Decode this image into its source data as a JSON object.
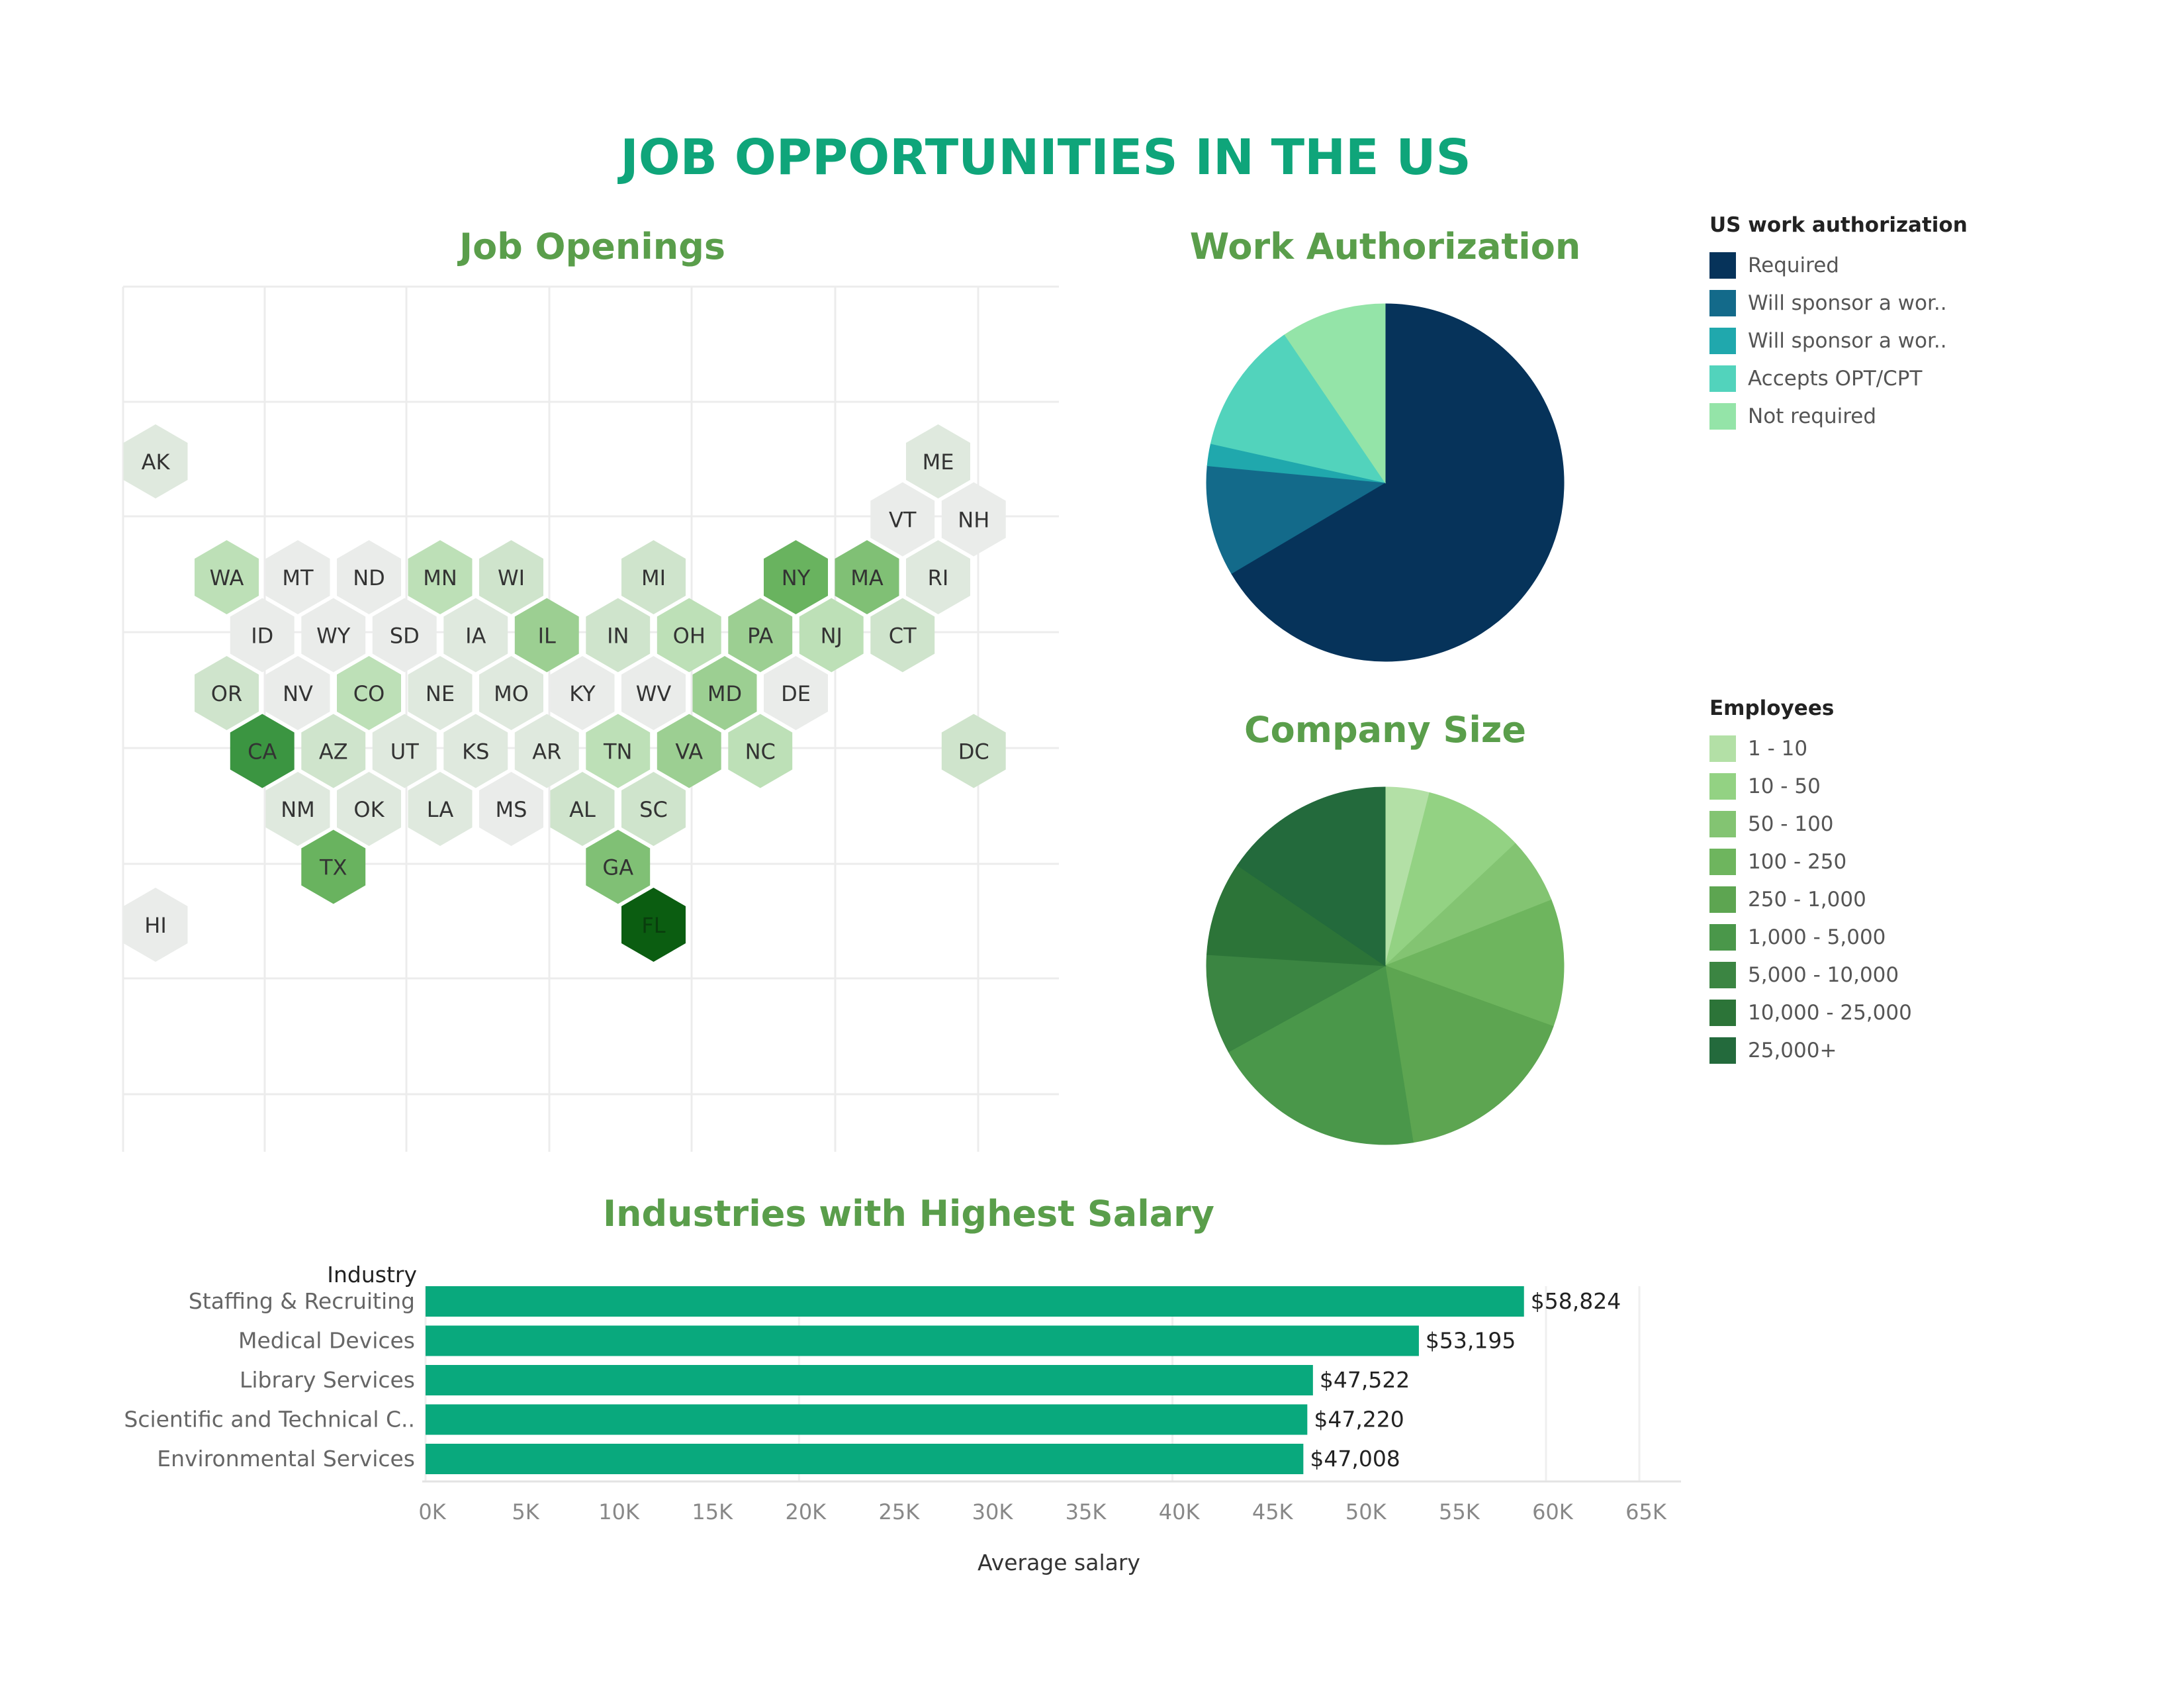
{
  "title": "JOB OPPORTUNITIES IN THE US",
  "colors": {
    "title": "#0fa57a",
    "section_title": "#5a9e4b",
    "bar": "#09a97d",
    "grid": "#ececec"
  },
  "chart_data": [
    {
      "type": "heatmap",
      "title": "Job Openings",
      "states": [
        {
          "code": "AK",
          "level": 1
        },
        {
          "code": "ME",
          "level": 1
        },
        {
          "code": "VT",
          "level": 0
        },
        {
          "code": "NH",
          "level": 0
        },
        {
          "code": "WA",
          "level": 3
        },
        {
          "code": "MT",
          "level": 0
        },
        {
          "code": "ND",
          "level": 0
        },
        {
          "code": "MN",
          "level": 3
        },
        {
          "code": "WI",
          "level": 2
        },
        {
          "code": "MI",
          "level": 2
        },
        {
          "code": "NY",
          "level": 6
        },
        {
          "code": "MA",
          "level": 5
        },
        {
          "code": "RI",
          "level": 1
        },
        {
          "code": "ID",
          "level": 0
        },
        {
          "code": "WY",
          "level": 0
        },
        {
          "code": "SD",
          "level": 0
        },
        {
          "code": "IA",
          "level": 1
        },
        {
          "code": "IL",
          "level": 4
        },
        {
          "code": "IN",
          "level": 2
        },
        {
          "code": "OH",
          "level": 3
        },
        {
          "code": "PA",
          "level": 4
        },
        {
          "code": "NJ",
          "level": 3
        },
        {
          "code": "CT",
          "level": 2
        },
        {
          "code": "OR",
          "level": 2
        },
        {
          "code": "NV",
          "level": 0
        },
        {
          "code": "CO",
          "level": 3
        },
        {
          "code": "NE",
          "level": 1
        },
        {
          "code": "MO",
          "level": 1
        },
        {
          "code": "KY",
          "level": 0
        },
        {
          "code": "WV",
          "level": 0
        },
        {
          "code": "MD",
          "level": 4
        },
        {
          "code": "DE",
          "level": 0
        },
        {
          "code": "CA",
          "level": 8
        },
        {
          "code": "AZ",
          "level": 2
        },
        {
          "code": "UT",
          "level": 1
        },
        {
          "code": "KS",
          "level": 1
        },
        {
          "code": "AR",
          "level": 1
        },
        {
          "code": "TN",
          "level": 3
        },
        {
          "code": "VA",
          "level": 4
        },
        {
          "code": "NC",
          "level": 3
        },
        {
          "code": "DC",
          "level": 2
        },
        {
          "code": "NM",
          "level": 1
        },
        {
          "code": "OK",
          "level": 1
        },
        {
          "code": "LA",
          "level": 1
        },
        {
          "code": "MS",
          "level": 0
        },
        {
          "code": "AL",
          "level": 2
        },
        {
          "code": "SC",
          "level": 2
        },
        {
          "code": "TX",
          "level": 6
        },
        {
          "code": "GA",
          "level": 5
        },
        {
          "code": "HI",
          "level": 0
        },
        {
          "code": "FL",
          "level": 10
        }
      ]
    },
    {
      "type": "pie",
      "title": "Work Authorization",
      "legend_title": "US work authorization",
      "slices": [
        {
          "label": "Required",
          "value": 66.5,
          "color": "#06335a"
        },
        {
          "label": "Will sponsor a wor..",
          "value": 10.0,
          "color": "#136a8a"
        },
        {
          "label": "Will sponsor a wor..",
          "value": 2.0,
          "color": "#20a8ad"
        },
        {
          "label": "Accepts OPT/CPT",
          "value": 12.0,
          "color": "#52d3bc"
        },
        {
          "label": "Not required",
          "value": 9.5,
          "color": "#94e4a8"
        }
      ]
    },
    {
      "type": "pie",
      "title": "Company Size",
      "legend_title": "Employees",
      "slices": [
        {
          "label": "1 - 10",
          "value": 4.0,
          "color": "#b3e0a6"
        },
        {
          "label": "10 - 50",
          "value": 9.0,
          "color": "#93d283"
        },
        {
          "label": "50 - 100",
          "value": 6.0,
          "color": "#83c472"
        },
        {
          "label": "100 - 250",
          "value": 11.5,
          "color": "#6eb55e"
        },
        {
          "label": "250 - 1,000",
          "value": 17.0,
          "color": "#5da551"
        },
        {
          "label": "1,000 - 5,000",
          "value": 19.5,
          "color": "#4a974a"
        },
        {
          "label": "5,000 - 10,000",
          "value": 9.0,
          "color": "#3b8542"
        },
        {
          "label": "10,000 - 25,000",
          "value": 8.5,
          "color": "#2c7438"
        },
        {
          "label": "25,000+",
          "value": 15.5,
          "color": "#236a3c"
        }
      ]
    },
    {
      "type": "bar",
      "orientation": "horizontal",
      "title": "Industries with Highest Salary",
      "ylabel": "Industry",
      "xlabel": "Average salary",
      "categories": [
        "Staffing & Recruiting",
        "Medical Devices",
        "Library Services",
        "Scientific and Technical C..",
        "Environmental Services"
      ],
      "values": [
        58824,
        53195,
        47522,
        47220,
        47008
      ],
      "value_labels": [
        "$58,824",
        "$53,195",
        "$47,522",
        "$47,220",
        "$47,008"
      ],
      "xlim": [
        0,
        65000
      ],
      "xticks": [
        "0K",
        "5K",
        "10K",
        "15K",
        "20K",
        "25K",
        "30K",
        "35K",
        "40K",
        "45K",
        "50K",
        "55K",
        "60K",
        "65K"
      ]
    }
  ]
}
